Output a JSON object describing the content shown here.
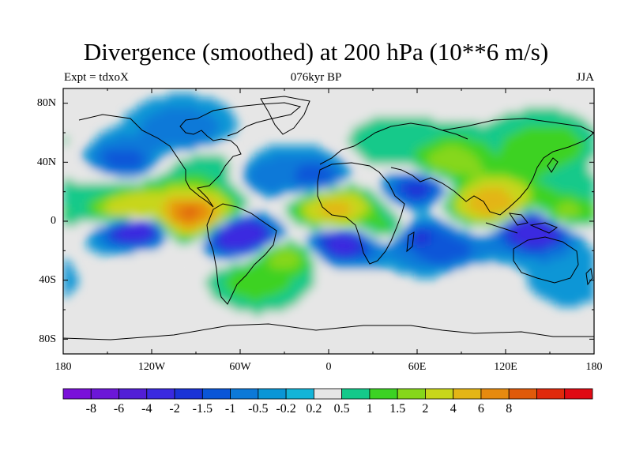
{
  "title": "Divergence (smoothed) at 200 hPa (10**6 m/s)",
  "left_string": "Expt = tdxoX",
  "center_string": "076kyr BP",
  "right_string": "JJA",
  "map": {
    "projection": "cylindrical-equidistant",
    "background_color": "#e6e6e6",
    "coastline_color": "#000000",
    "lat_tick_labels": [
      "80N",
      "40N",
      "0",
      "40S",
      "80S"
    ],
    "lon_tick_labels": [
      "180",
      "120W",
      "60W",
      "0",
      "60E",
      "120E",
      "180"
    ]
  },
  "colorbar": {
    "labels": [
      "-8",
      "-6",
      "-4",
      "-2",
      "-1.5",
      "-1",
      "-0.5",
      "-0.2",
      "0.2",
      "0.5",
      "1",
      "1.5",
      "2",
      "4",
      "6",
      "8"
    ],
    "colors": [
      "#7a10d9",
      "#6c17d8",
      "#521ed6",
      "#3a2ae0",
      "#1a33d6",
      "#0a56d8",
      "#0c79d8",
      "#0a96d6",
      "#14b4d8",
      "#e6e6e6",
      "#14c98a",
      "#3cd223",
      "#86d71a",
      "#c8d61a",
      "#e3b515",
      "#e68a0f",
      "#e05a0a",
      "#e02a0c",
      "#e00a14"
    ]
  },
  "chart_data": {
    "type": "heatmap",
    "title": "Divergence (smoothed) at 200 hPa (10**6 m/s)",
    "variable": "divergence at 200 hPa",
    "units": "10**6 m/s",
    "season": "JJA",
    "period": "076kyr BP",
    "experiment": "tdxoX",
    "x_range": [
      -180,
      180
    ],
    "y_range": [
      -90,
      90
    ],
    "contour_levels": [
      -8,
      -6,
      -4,
      -2,
      -1.5,
      -1,
      -0.5,
      -0.2,
      0.2,
      0.5,
      1,
      1.5,
      2,
      4,
      6,
      8
    ],
    "features": [
      {
        "lon": -95,
        "lat": 5,
        "value": 9
      },
      {
        "lon": -135,
        "lat": 8,
        "value": 4
      },
      {
        "lon": 5,
        "lat": 8,
        "value": 5
      },
      {
        "lon": 110,
        "lat": 12,
        "value": 6
      },
      {
        "lon": 160,
        "lat": 5,
        "value": 2
      },
      {
        "lon": 40,
        "lat": 50,
        "value": 1
      },
      {
        "lon": 80,
        "lat": 40,
        "value": 2
      },
      {
        "lon": 150,
        "lat": 50,
        "value": 1.5
      },
      {
        "lon": -160,
        "lat": 25,
        "value": 0.5
      },
      {
        "lon": -10,
        "lat": 30,
        "value": -1.5
      },
      {
        "lon": -40,
        "lat": 30,
        "value": -1
      },
      {
        "lon": 60,
        "lat": 22,
        "value": -2
      },
      {
        "lon": -140,
        "lat": 40,
        "value": -1.5
      },
      {
        "lon": -85,
        "lat": 35,
        "value": 1
      },
      {
        "lon": -100,
        "lat": 60,
        "value": -1
      },
      {
        "lon": -60,
        "lat": -10,
        "value": -4
      },
      {
        "lon": -130,
        "lat": -5,
        "value": -4
      },
      {
        "lon": 10,
        "lat": -15,
        "value": -3
      },
      {
        "lon": 60,
        "lat": -10,
        "value": -2
      },
      {
        "lon": 80,
        "lat": -20,
        "value": -1.5
      },
      {
        "lon": 140,
        "lat": -5,
        "value": -4
      },
      {
        "lon": 40,
        "lat": -5,
        "value": 1.5
      },
      {
        "lon": -50,
        "lat": -40,
        "value": 1.5
      },
      {
        "lon": -30,
        "lat": -25,
        "value": 2
      },
      {
        "lon": -120,
        "lat": -30,
        "value": 0.5
      },
      {
        "lon": 20,
        "lat": -45,
        "value": 0.5
      },
      {
        "lon": 100,
        "lat": -40,
        "value": 0.5
      },
      {
        "lon": 160,
        "lat": -40,
        "value": -0.5
      },
      {
        "lon": -110,
        "lat": -60,
        "value": 0.3
      },
      {
        "lon": 100,
        "lat": -60,
        "value": 0.3
      }
    ]
  }
}
